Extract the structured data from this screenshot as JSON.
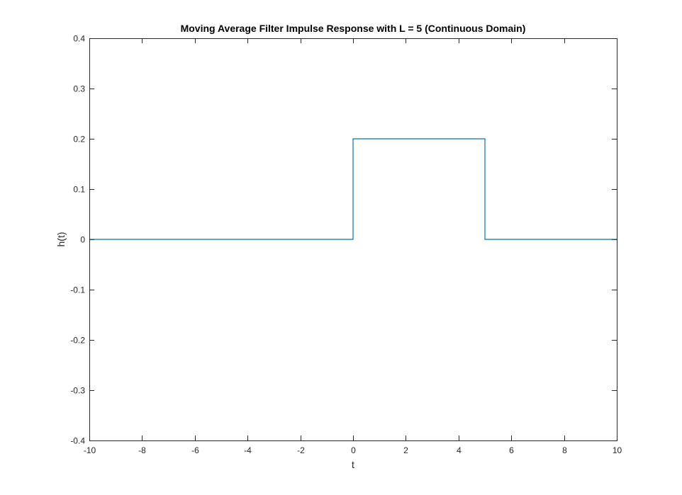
{
  "chart_data": {
    "type": "line",
    "title": "Moving Average Filter Impulse Response with L = 5 (Continuous Domain)",
    "xlabel": "t",
    "ylabel": "h(t)",
    "xlim": [
      -10,
      10
    ],
    "ylim": [
      -0.4,
      0.4
    ],
    "xticks": [
      -10,
      -8,
      -6,
      -4,
      -2,
      0,
      2,
      4,
      6,
      8,
      10
    ],
    "yticks": [
      -0.4,
      -0.3,
      -0.2,
      -0.1,
      0,
      0.1,
      0.2,
      0.3,
      0.4
    ],
    "xtick_labels": [
      "-10",
      "-8",
      "-6",
      "-4",
      "-2",
      "0",
      "2",
      "4",
      "6",
      "8",
      "10"
    ],
    "ytick_labels": [
      "-0.4",
      "-0.3",
      "-0.2",
      "-0.1",
      "0",
      "0.1",
      "0.2",
      "0.3",
      "0.4"
    ],
    "grid": false,
    "series": [
      {
        "color": "#0072BD",
        "x": [
          -10,
          0,
          0,
          5,
          5,
          10
        ],
        "y": [
          0,
          0,
          0.2,
          0.2,
          0,
          0
        ]
      }
    ]
  }
}
